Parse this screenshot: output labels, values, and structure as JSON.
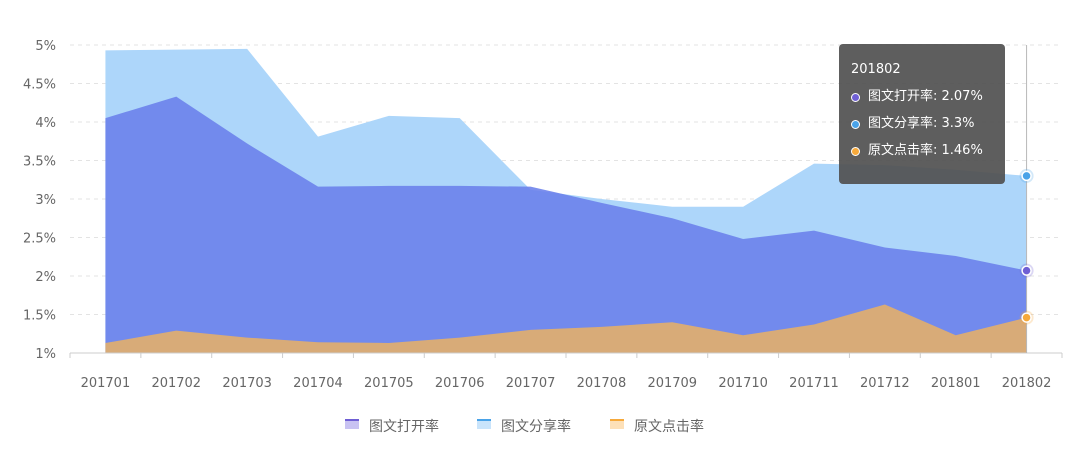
{
  "chart_data": {
    "type": "area",
    "categories": [
      "201701",
      "201702",
      "201703",
      "201704",
      "201705",
      "201706",
      "201707",
      "201708",
      "201709",
      "201710",
      "201711",
      "201712",
      "201801",
      "201802"
    ],
    "ylim": [
      1,
      5
    ],
    "yticks": [
      "1%",
      "1.5%",
      "2%",
      "2.5%",
      "3%",
      "3.5%",
      "4%",
      "4.5%",
      "5%"
    ],
    "grid": true,
    "legend_position": "bottom",
    "series": [
      {
        "name": "图文打开率",
        "values": [
          4.05,
          4.33,
          3.72,
          3.16,
          3.17,
          3.17,
          3.16,
          2.95,
          2.75,
          2.48,
          2.59,
          2.37,
          2.26,
          2.07
        ],
        "color": "#6f5fd4",
        "fill": "rgba(106,128,235,0.88)"
      },
      {
        "name": "图文分享率",
        "values": [
          4.93,
          4.94,
          4.95,
          3.81,
          4.08,
          4.05,
          3.12,
          3.0,
          2.9,
          2.9,
          3.46,
          3.44,
          3.38,
          3.3
        ],
        "color": "#4aa3e8",
        "fill": "rgba(173,214,250,1)"
      },
      {
        "name": "原文点击率",
        "values": [
          1.13,
          1.29,
          1.2,
          1.14,
          1.13,
          1.2,
          1.3,
          1.34,
          1.4,
          1.23,
          1.37,
          1.63,
          1.23,
          1.46
        ],
        "color": "#f6a93b",
        "fill": "rgba(219,172,116,0.97)"
      }
    ],
    "tooltip": {
      "title": "201802",
      "rows": [
        {
          "label": "图文打开率: 2.07%"
        },
        {
          "label": "图文分享率: 3.3%"
        },
        {
          "label": "原文点击率: 1.46%"
        }
      ]
    }
  }
}
